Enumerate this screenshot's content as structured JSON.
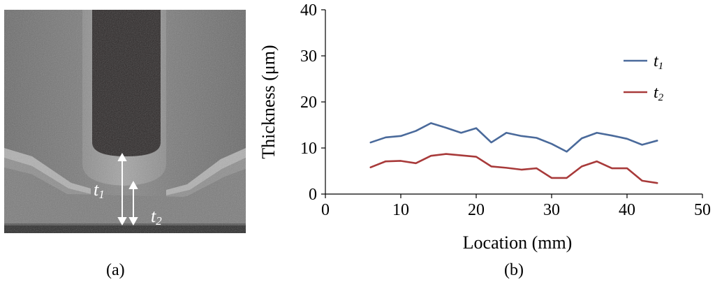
{
  "photo": {
    "label_t1": "t",
    "label_t1_sub": "1",
    "label_t2": "t",
    "label_t2_sub": "2"
  },
  "captions": {
    "a": "(a)",
    "b": "(b)"
  },
  "colors": {
    "t1": "#4a6a9b",
    "t2": "#a83a3a",
    "axis": "#000000"
  },
  "chart_data": {
    "type": "line",
    "xlabel": "Location (mm)",
    "ylabel": "Thickness (μm)",
    "xlim": [
      0,
      50
    ],
    "ylim": [
      0,
      40
    ],
    "xticks": [
      0,
      10,
      20,
      30,
      40,
      50
    ],
    "yticks": [
      0,
      10,
      20,
      30,
      40
    ],
    "grid": false,
    "legend_position": "right",
    "x": [
      6,
      8,
      10,
      12,
      14,
      16,
      18,
      20,
      22,
      24,
      26,
      28,
      30,
      32,
      34,
      36,
      38,
      40,
      42,
      44
    ],
    "series": [
      {
        "name": "t",
        "name_sub": "1",
        "color": "#4a6a9b",
        "values": [
          11.2,
          12.3,
          12.6,
          13.7,
          15.4,
          14.4,
          13.3,
          14.3,
          11.2,
          13.3,
          12.6,
          12.2,
          10.9,
          9.2,
          12.1,
          13.3,
          12.7,
          12.0,
          10.7,
          11.6
        ]
      },
      {
        "name": "t",
        "name_sub": "2",
        "color": "#a83a3a",
        "values": [
          5.8,
          7.1,
          7.2,
          6.7,
          8.3,
          8.7,
          8.4,
          8.1,
          6.0,
          5.7,
          5.3,
          5.6,
          3.5,
          3.5,
          6.0,
          7.1,
          5.6,
          5.6,
          2.9,
          2.4
        ]
      }
    ]
  }
}
